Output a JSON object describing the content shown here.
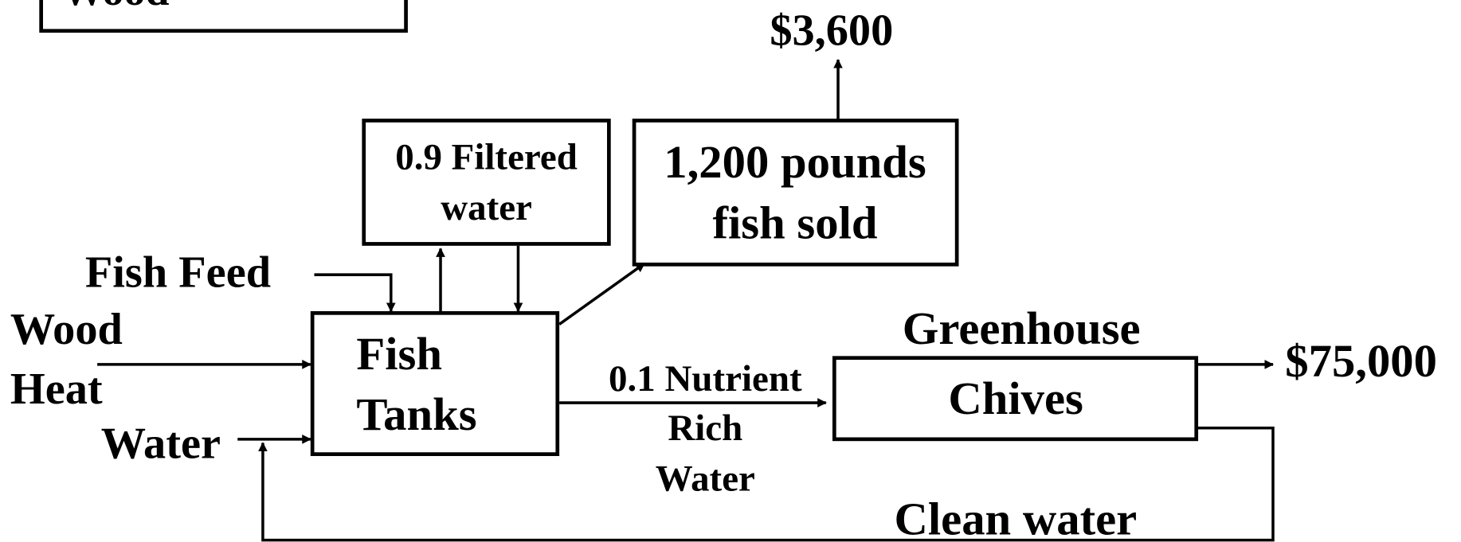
{
  "legend_box": {
    "label": "Wood"
  },
  "nodes": {
    "fish_tanks": {
      "lines": [
        "Fish",
        "Tanks"
      ]
    },
    "filtered_water": {
      "lines": [
        "0.9 Filtered",
        "water"
      ]
    },
    "fish_sold": {
      "lines": [
        "1,200 pounds",
        "fish sold"
      ]
    },
    "greenhouse": {
      "title": "Greenhouse",
      "label": "Chives"
    }
  },
  "inputs": {
    "fish_feed": "Fish Feed",
    "wood_heat": [
      "Wood",
      "Heat"
    ],
    "water": "Water"
  },
  "flows": {
    "nutrient_water": [
      "0.1 Nutrient",
      "Rich",
      "Water"
    ],
    "clean_water": "Clean water"
  },
  "outputs": {
    "fish_revenue": "$3,600",
    "chives_revenue": "$75,000"
  }
}
